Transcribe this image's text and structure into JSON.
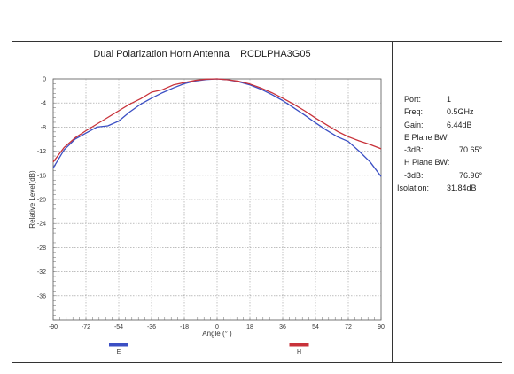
{
  "chart_data": {
    "type": "line",
    "title": "Dual Polarization Horn Antenna    RCDLPHA3G05",
    "xlabel": "Angle (° )",
    "ylabel": "Relative Level(dB)",
    "xlim": [
      -90,
      90
    ],
    "ylim": [
      -40,
      0
    ],
    "x_ticks": [
      "-90",
      "-72",
      "-54",
      "-36",
      "-18",
      "0",
      "18",
      "36",
      "54",
      "72",
      "90"
    ],
    "y_ticks": [
      "0",
      "-4",
      "-8",
      "-12",
      "-16",
      "-20",
      "-24",
      "-28",
      "-32",
      "-36"
    ],
    "grid": true,
    "legend_position": "bottom",
    "series": [
      {
        "name": "E",
        "color": "#3b4fc4",
        "x": [
          -90,
          -84,
          -78,
          -72,
          -66,
          -60,
          -54,
          -48,
          -42,
          -36,
          -30,
          -24,
          -18,
          -12,
          -6,
          0,
          6,
          12,
          18,
          24,
          30,
          36,
          42,
          48,
          54,
          60,
          66,
          72,
          78,
          84,
          90
        ],
        "y": [
          -14.8,
          -11.8,
          -10.0,
          -9.0,
          -8.0,
          -7.8,
          -7.0,
          -5.5,
          -4.2,
          -3.2,
          -2.3,
          -1.5,
          -0.8,
          -0.35,
          -0.1,
          0,
          -0.15,
          -0.5,
          -1.0,
          -1.7,
          -2.6,
          -3.6,
          -4.8,
          -6.0,
          -7.3,
          -8.5,
          -9.6,
          -10.4,
          -12.0,
          -13.8,
          -16.2
        ]
      },
      {
        "name": "H",
        "color": "#c8323a",
        "x": [
          -90,
          -84,
          -78,
          -72,
          -66,
          -60,
          -54,
          -48,
          -42,
          -36,
          -30,
          -24,
          -18,
          -12,
          -6,
          0,
          6,
          12,
          18,
          24,
          30,
          36,
          42,
          48,
          54,
          60,
          66,
          72,
          78,
          84,
          90
        ],
        "y": [
          -13.8,
          -11.4,
          -9.8,
          -8.6,
          -7.5,
          -6.4,
          -5.3,
          -4.2,
          -3.3,
          -2.2,
          -1.8,
          -1.0,
          -0.6,
          -0.25,
          -0.05,
          0,
          -0.15,
          -0.4,
          -0.85,
          -1.5,
          -2.3,
          -3.2,
          -4.2,
          -5.3,
          -6.5,
          -7.6,
          -8.7,
          -9.6,
          -10.3,
          -10.9,
          -11.6
        ]
      }
    ]
  },
  "info": {
    "port_label": "Port:",
    "port_value": "1",
    "freq_label": "Freq:",
    "freq_value": "0.5GHz",
    "gain_label": "Gain:",
    "gain_value": "6.44dB",
    "e_plane_label": "E Plane BW:",
    "e_3db_label": "-3dB:",
    "e_3db_value": "70.65°",
    "h_plane_label": "H Plane BW:",
    "h_3db_label": "-3dB:",
    "h_3db_value": "76.96°",
    "isolation_label": "Isolation:",
    "isolation_value": "31.84dB"
  }
}
